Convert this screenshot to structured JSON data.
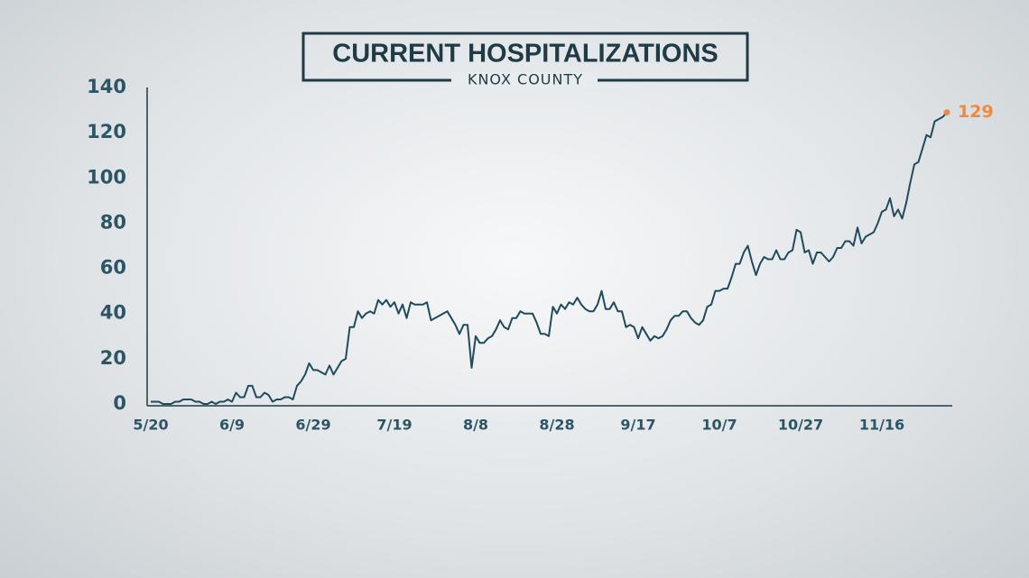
{
  "chart_data": {
    "type": "line",
    "title": "CURRENT HOSPITALIZATIONS",
    "subtitle": "KNOX COUNTY",
    "color": "#1f4b5c",
    "end_marker_color": "#f08a3c",
    "categories": [
      "5/20",
      null,
      null,
      null,
      null,
      null,
      null,
      null,
      null,
      null,
      null,
      null,
      null,
      null,
      null,
      null,
      null,
      null,
      null,
      null,
      "6/9",
      null,
      null,
      null,
      null,
      null,
      null,
      null,
      null,
      null,
      null,
      null,
      null,
      null,
      null,
      null,
      null,
      null,
      null,
      null,
      "6/29",
      null,
      null,
      null,
      null,
      null,
      null,
      null,
      null,
      null,
      null,
      null,
      null,
      null,
      null,
      null,
      null,
      null,
      null,
      null,
      "7/19",
      null,
      null,
      null,
      null,
      null,
      null,
      null,
      null,
      null,
      null,
      null,
      null,
      null,
      null,
      null,
      null,
      null,
      null,
      null,
      "8/8",
      null,
      null,
      null,
      null,
      null,
      null,
      null,
      null,
      null,
      null,
      null,
      null,
      null,
      null,
      null,
      null,
      null,
      null,
      null,
      "8/28",
      null,
      null,
      null,
      null,
      null,
      null,
      null,
      null,
      null,
      null,
      null,
      null,
      null,
      null,
      null,
      null,
      null,
      null,
      null,
      "9/17",
      null,
      null,
      null,
      null,
      null,
      null,
      null,
      null,
      null,
      null,
      null,
      null,
      null,
      null,
      null,
      null,
      null,
      null,
      null,
      "10/7",
      null,
      null,
      null,
      null,
      null,
      null,
      null,
      null,
      null,
      null,
      null,
      null,
      null,
      null,
      null,
      null,
      null,
      null,
      null,
      "10/27",
      null,
      null,
      null,
      null,
      null,
      null,
      null,
      null,
      null,
      null,
      null,
      null,
      null,
      null,
      null,
      null,
      null,
      null,
      null,
      "11/16",
      null,
      null,
      null,
      null,
      null,
      null,
      null,
      null,
      null,
      null,
      null,
      null,
      null,
      null,
      null,
      null
    ],
    "values": [
      1,
      1,
      1,
      0,
      0,
      0,
      1,
      1,
      2,
      2,
      2,
      1,
      1,
      0,
      0,
      1,
      0,
      1,
      1,
      2,
      1,
      5,
      3,
      3,
      8,
      8,
      3,
      3,
      5,
      4,
      1,
      2,
      2,
      3,
      3,
      2,
      8,
      10,
      13,
      18,
      15,
      15,
      14,
      13,
      17,
      13,
      16,
      19,
      20,
      34,
      34,
      41,
      38,
      40,
      41,
      40,
      46,
      44,
      46,
      43,
      45,
      40,
      44,
      38,
      45,
      44,
      44,
      44,
      45,
      37,
      38,
      39,
      40,
      41,
      38,
      35,
      31,
      35,
      35,
      16,
      30,
      27,
      27,
      29,
      30,
      33,
      37,
      34,
      33,
      38,
      38,
      41,
      40,
      40,
      40,
      36,
      31,
      31,
      30,
      43,
      40,
      44,
      42,
      45,
      44,
      47,
      44,
      42,
      41,
      41,
      44,
      50,
      42,
      42,
      45,
      41,
      41,
      34,
      35,
      34,
      29,
      34,
      31,
      28,
      30,
      29,
      30,
      33,
      37,
      39,
      39,
      41,
      41,
      38,
      36,
      35,
      37,
      43,
      44,
      50,
      50,
      51,
      51,
      56,
      62,
      62,
      67,
      70,
      63,
      57,
      62,
      65,
      64,
      64,
      68,
      64,
      64,
      67,
      68,
      77,
      76,
      67,
      68,
      62,
      67,
      67,
      65,
      63,
      65,
      69,
      69,
      72,
      72,
      70,
      78,
      71,
      74,
      75,
      76,
      80,
      85,
      86,
      91,
      83,
      86,
      82,
      89,
      98,
      106,
      107,
      113,
      119,
      118,
      125,
      126,
      127,
      129
    ],
    "ylim": [
      0,
      140
    ],
    "yticks": [
      0,
      20,
      40,
      60,
      80,
      100,
      120,
      140
    ]
  }
}
